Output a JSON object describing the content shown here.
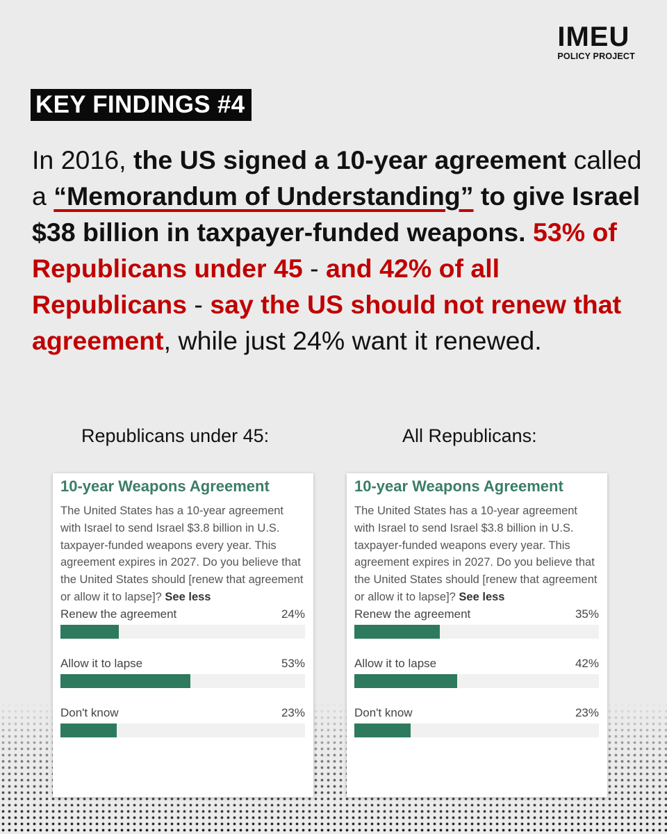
{
  "brand": {
    "name": "IMEU",
    "sub": "POLICY PROJECT"
  },
  "badge": "KEY FINDINGS #4",
  "headline": {
    "s1": "In 2016,",
    "s2": "the US signed a 10-year agreement",
    "s3": "called a",
    "s4": "“Memorandum of Understanding”",
    "s5": "to give Israel $38 billion in taxpayer-funded weapons.",
    "s6": "53% of Republicans under 45",
    "s7": "-",
    "s8": "and 42% of all Republicans",
    "s9": "-",
    "s10": "say the US should not renew that agreement",
    "s11": ", while just 24% want it renewed."
  },
  "colors": {
    "accent_red": "#c00000",
    "poll_green": "#2e7a5e",
    "title_green": "#3b7d66"
  },
  "polls": [
    {
      "label": "Republicans under 45:",
      "title": "10-year Weapons Agreement",
      "question": "The United States has a 10-year agreement with Israel to send Israel $3.8 billion in U.S. taxpayer-funded weapons every year. This agreement expires in 2027. Do you believe that the United States should [renew that agreement or allow it to lapse]?",
      "see_less": "See less",
      "options": [
        {
          "label": "Renew the agreement",
          "value": 24,
          "display": "24%"
        },
        {
          "label": "Allow it to lapse",
          "value": 53,
          "display": "53%"
        },
        {
          "label": "Don't know",
          "value": 23,
          "display": "23%"
        }
      ]
    },
    {
      "label": "All Republicans:",
      "title": "10-year Weapons Agreement",
      "question": "The United States has a 10-year agreement with Israel to send Israel $3.8 billion in U.S. taxpayer-funded weapons every year. This agreement expires in 2027. Do you believe that the United States should [renew that agreement or allow it to lapse]?",
      "see_less": "See less",
      "options": [
        {
          "label": "Renew the agreement",
          "value": 35,
          "display": "35%"
        },
        {
          "label": "Allow it to lapse",
          "value": 42,
          "display": "42%"
        },
        {
          "label": "Don't know",
          "value": 23,
          "display": "23%"
        }
      ]
    }
  ]
}
